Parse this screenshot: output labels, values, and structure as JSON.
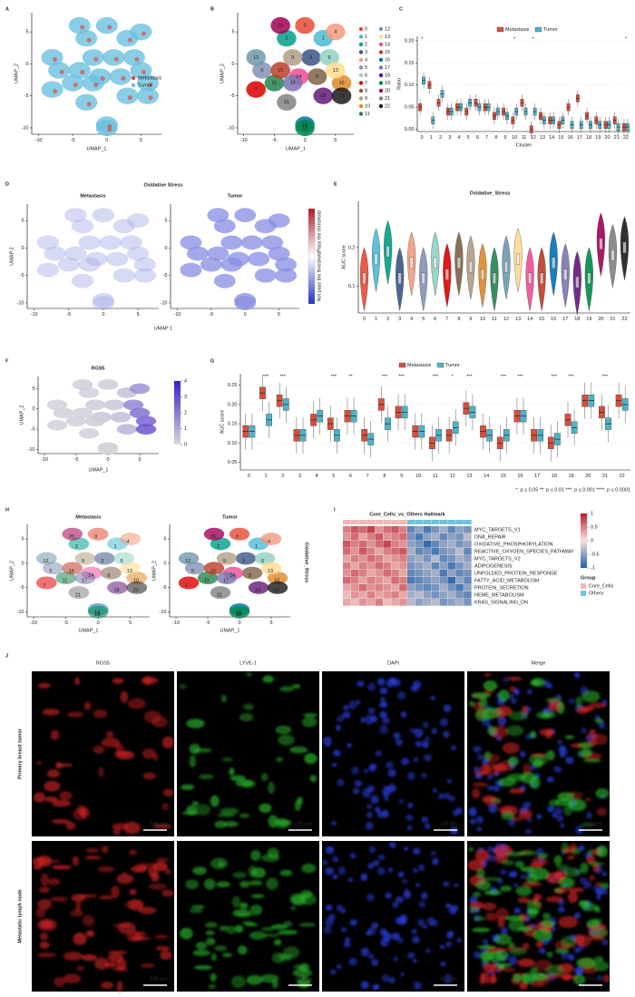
{
  "chart_data": [
    {
      "panel": "A",
      "type": "umap",
      "xlabel": "UMAP_1",
      "ylabel": "UMAP_2",
      "xlim": [
        -11,
        8
      ],
      "ylim": [
        -11,
        8
      ],
      "xticks": [
        -10,
        -5,
        0,
        5
      ],
      "yticks": [
        -10,
        -5,
        0,
        5
      ],
      "legend": [
        {
          "name": "Metastasis",
          "color": "#e0453a"
        },
        {
          "name": "Tumor",
          "color": "#6cc0e0"
        }
      ]
    },
    {
      "panel": "B",
      "type": "umap-clusters",
      "xlabel": "UMAP_1",
      "ylabel": "UMAP_2",
      "xlim": [
        -11,
        8
      ],
      "ylim": [
        -11,
        8
      ],
      "xticks": [
        -10,
        -5,
        0,
        5
      ],
      "yticks": [
        -10,
        -5,
        0,
        5
      ],
      "clusters": [
        {
          "name": "0",
          "x": 0,
          "y": 6,
          "color": "#e64b35"
        },
        {
          "name": "1",
          "x": 3,
          "y": 4,
          "color": "#4dbbd5"
        },
        {
          "name": "2",
          "x": -3,
          "y": 4,
          "color": "#00a087"
        },
        {
          "name": "3",
          "x": 1,
          "y": 1,
          "color": "#3c5488"
        },
        {
          "name": "4",
          "x": 5,
          "y": 5,
          "color": "#f39b7f"
        },
        {
          "name": "5",
          "x": -7,
          "y": -1,
          "color": "#8491b4"
        },
        {
          "name": "6",
          "x": 4,
          "y": 1,
          "color": "#91d1c2"
        },
        {
          "name": "7",
          "x": -8,
          "y": -4,
          "color": "#dc0000"
        },
        {
          "name": "8",
          "x": 2,
          "y": -2,
          "color": "#7e6148"
        },
        {
          "name": "9",
          "x": -2,
          "y": 1,
          "color": "#b09c85"
        },
        {
          "name": "10",
          "x": 6,
          "y": -3,
          "color": "#e18727"
        },
        {
          "name": "11",
          "x": -5,
          "y": -3,
          "color": "#20854e"
        },
        {
          "name": "12",
          "x": -8,
          "y": 1,
          "color": "#6f99ad"
        },
        {
          "name": "13",
          "x": 5,
          "y": -1,
          "color": "#ffdc91"
        },
        {
          "name": "14",
          "x": -1,
          "y": -2,
          "color": "#ee4c97"
        },
        {
          "name": "15",
          "x": -4,
          "y": -1,
          "color": "#bc3c29"
        },
        {
          "name": "16",
          "x": 0,
          "y": -9.5,
          "color": "#0072b5"
        },
        {
          "name": "17",
          "x": -2,
          "y": -3,
          "color": "#7876b1"
        },
        {
          "name": "18",
          "x": 3,
          "y": -5,
          "color": "#631879"
        },
        {
          "name": "19",
          "x": 0,
          "y": -10,
          "color": "#008b45"
        },
        {
          "name": "20",
          "x": -4,
          "y": 6,
          "color": "#a20056"
        },
        {
          "name": "21",
          "x": -3,
          "y": -6,
          "color": "#808180"
        },
        {
          "name": "22",
          "x": 6,
          "y": -5,
          "color": "#1b1919"
        }
      ]
    },
    {
      "panel": "C",
      "type": "box",
      "xlabel": "Cluster",
      "ylabel": "Ratio",
      "categories": [
        "0",
        "1",
        "2",
        "3",
        "4",
        "5",
        "6",
        "7",
        "8",
        "9",
        "10",
        "11",
        "12",
        "13",
        "14",
        "15",
        "16",
        "17",
        "18",
        "19",
        "20",
        "21",
        "22"
      ],
      "ylim": [
        -0.005,
        0.21
      ],
      "yticks": [
        {
          "value": 0,
          "label": "0.00"
        },
        {
          "value": 0.05,
          "label": "0.05"
        },
        {
          "value": 0.1,
          "label": "0.10"
        },
        {
          "value": 0.15,
          "label": "0.15"
        },
        {
          "value": 0.2,
          "label": "0.20"
        }
      ],
      "grid": true,
      "series": [
        {
          "name": "Metastasis",
          "color": "#d6503d",
          "values": [
            0.05,
            0.1,
            0.06,
            0.04,
            0.05,
            0.04,
            0.06,
            0.05,
            0.03,
            0.04,
            0.02,
            0.06,
            0.0,
            0.03,
            0.02,
            0.01,
            0.05,
            0.07,
            0.03,
            0.02,
            0.01,
            0.02,
            0.005
          ]
        },
        {
          "name": "Tumor",
          "color": "#4fb3c8",
          "values": [
            0.11,
            0.02,
            0.08,
            0.04,
            0.05,
            0.06,
            0.05,
            0.05,
            0.04,
            0.03,
            0.04,
            0.04,
            0.04,
            0.02,
            0.02,
            0.02,
            0.01,
            0.01,
            0.01,
            0.01,
            0.01,
            0.005,
            0.005
          ]
        }
      ],
      "significance": [
        "*",
        null,
        null,
        null,
        null,
        null,
        null,
        null,
        null,
        null,
        "*",
        null,
        "*",
        null,
        null,
        null,
        null,
        null,
        null,
        null,
        null,
        null,
        "*"
      ]
    },
    {
      "panel": "D",
      "type": "umap-pair",
      "title": "Oxidative Stress",
      "subtitles": [
        "Metastasis",
        "Tumor"
      ],
      "xlabel": "UMAP 1",
      "ylabel": "UMAP 2",
      "xlim": [
        -11,
        8
      ],
      "ylim": [
        -11,
        8
      ],
      "xticks": [
        -10,
        -5,
        0,
        5
      ],
      "yticks": [
        -10,
        -5,
        0,
        5
      ],
      "colorbar": {
        "labels": [
          "Pass the threshold",
          "Not pass the threshold"
        ],
        "colors": [
          "#b2182b",
          "#ffffff",
          "#2131c8"
        ]
      }
    },
    {
      "panel": "E",
      "type": "violin",
      "title": "Oxidative_Stress",
      "ylabel": "AUC score",
      "categories": [
        "0",
        "1",
        "2",
        "3",
        "4",
        "5",
        "6",
        "7",
        "8",
        "9",
        "10",
        "11",
        "12",
        "13",
        "14",
        "15",
        "16",
        "17",
        "18",
        "19",
        "20",
        "21",
        "22"
      ],
      "values": [
        0.12,
        0.17,
        0.19,
        0.12,
        0.16,
        0.12,
        0.16,
        0.13,
        0.16,
        0.15,
        0.13,
        0.12,
        0.15,
        0.17,
        0.12,
        0.12,
        0.16,
        0.13,
        0.11,
        0.12,
        0.21,
        0.18,
        0.2
      ],
      "ylim": [
        0.03,
        0.32
      ],
      "yticks": [
        0.1,
        0.2
      ]
    },
    {
      "panel": "F",
      "type": "feature",
      "title": "RGS5",
      "xlabel": "UMAP_1",
      "ylabel": "UMAP_2",
      "xlim": [
        -11,
        8
      ],
      "ylim": [
        -11,
        8
      ],
      "xticks": [
        -10,
        -5,
        0,
        5
      ],
      "yticks": [
        -10,
        -5,
        0,
        5
      ],
      "values": [
        0.3,
        0.5,
        0.2,
        0.4,
        1.5,
        0.2,
        1.8,
        0.2,
        0.6,
        0.3,
        2.5,
        0.2,
        0.2,
        2.2,
        0.4,
        0.2,
        0.3,
        0.3,
        0.8,
        0.1,
        0.3,
        0.2,
        2.8
      ],
      "colorbar": {
        "ticks": [
          0,
          1,
          2,
          3,
          4
        ],
        "colors": [
          "#d9d9d9",
          "#3f1ccf"
        ]
      }
    },
    {
      "panel": "G",
      "type": "box",
      "ylabel": "AUC score",
      "categories": [
        "0",
        "1",
        "2",
        "3",
        "4",
        "5",
        "6",
        "7",
        "8",
        "9",
        "10",
        "11",
        "12",
        "13",
        "14",
        "15",
        "16",
        "17",
        "18",
        "19",
        "20",
        "21",
        "22"
      ],
      "ylim": [
        0.03,
        0.28
      ],
      "yticks": [
        {
          "value": 0.05,
          "label": "0.05"
        },
        {
          "value": 0.1,
          "label": "0.10"
        },
        {
          "value": 0.15,
          "label": "0.15"
        },
        {
          "value": 0.2,
          "label": "0.20"
        },
        {
          "value": 0.25,
          "label": "0.25"
        }
      ],
      "grid": true,
      "series": [
        {
          "name": "Metastasis",
          "color": "#d6503d",
          "values": [
            0.13,
            0.23,
            0.21,
            0.12,
            0.16,
            0.15,
            0.17,
            0.12,
            0.2,
            0.18,
            0.13,
            0.1,
            0.12,
            0.19,
            0.13,
            0.1,
            0.17,
            0.12,
            0.1,
            0.16,
            0.21,
            0.18,
            0.21
          ]
        },
        {
          "name": "Tumor",
          "color": "#4fb3c8",
          "values": [
            0.13,
            0.16,
            0.2,
            0.12,
            0.17,
            0.12,
            0.17,
            0.11,
            0.15,
            0.18,
            0.13,
            0.12,
            0.14,
            0.18,
            0.12,
            0.12,
            0.17,
            0.12,
            0.11,
            0.14,
            0.21,
            0.15,
            0.2
          ]
        }
      ],
      "significance": [
        null,
        "***",
        "***",
        null,
        null,
        "***",
        "**",
        null,
        "***",
        "***",
        null,
        "***",
        "*",
        "***",
        null,
        "***",
        "***",
        null,
        "***",
        "***",
        null,
        "***",
        null
      ],
      "footnote": "*: p ≤ 0.05   **: p ≤ 0.01   ***: p ≤ 0.001   ****: p ≤ 0.0001"
    },
    {
      "panel": "H",
      "type": "umap-pair",
      "subtitles": [
        "Metastasis",
        "Tumor"
      ],
      "side_label": "Oxidative_Stress",
      "xlabel": "UMAP_1",
      "ylabel": "UMAP_2",
      "xlim": [
        -11,
        8
      ],
      "ylim": [
        -11,
        8
      ],
      "xticks": [
        -10,
        -5,
        0,
        5
      ],
      "yticks": [
        -10,
        -5,
        0,
        5
      ]
    },
    {
      "panel": "I",
      "type": "heatmap",
      "title": "Core_Cells_vs_Others Hallmark",
      "legend_title": "Group",
      "rows": [
        "MYC_TARGETS_V1",
        "DNA_REPAIR",
        "OXIDATIVE_PHOSPHORYLATION",
        "REACTIVE_OXYGEN_SPECIES_PATHWAY",
        "MYC_TARGETS_V2",
        "ADIPOGENESIS",
        "UNFOLDED_PROTEIN_RESPONSE",
        "FATTY_ACID_METABOLISM",
        "PROTEIN_SECRETION",
        "HEME_METABOLISM",
        "KRAS_SIGNALING_DN"
      ],
      "groups": [
        {
          "name": "Core_Cells",
          "color": "#f4b6b6"
        },
        {
          "name": "Others",
          "color": "#6ec3dc"
        }
      ],
      "column_groups": [
        "Core_Cells",
        "Core_Cells",
        "Core_Cells",
        "Core_Cells",
        "Core_Cells",
        "Core_Cells",
        "Core_Cells",
        "Core_Cells",
        "Others",
        "Others",
        "Others",
        "Others",
        "Others",
        "Others",
        "Others",
        "Others"
      ],
      "values": [
        [
          0.5,
          0.7,
          0.6,
          0.8,
          0.4,
          0.6,
          0.7,
          0.5,
          -0.7,
          -0.5,
          -0.8,
          -0.6,
          -0.4,
          -0.7,
          -0.5,
          -0.6
        ],
        [
          0.4,
          0.6,
          0.3,
          0.5,
          0.7,
          0.4,
          0.5,
          0.6,
          -0.6,
          -0.8,
          -0.5,
          -0.4,
          -0.7,
          -0.5,
          -0.6,
          -0.3
        ],
        [
          0.7,
          0.5,
          0.6,
          0.4,
          0.6,
          0.8,
          0.5,
          0.4,
          -0.5,
          -0.6,
          -0.9,
          -0.7,
          -0.5,
          -0.4,
          -0.6,
          -0.5
        ],
        [
          0.6,
          0.4,
          0.7,
          0.5,
          0.3,
          0.5,
          0.6,
          0.7,
          -0.4,
          -0.7,
          -0.6,
          -0.8,
          -0.6,
          -0.5,
          -0.3,
          -0.7
        ],
        [
          0.3,
          0.5,
          0.4,
          0.6,
          0.5,
          0.3,
          0.4,
          0.5,
          -0.5,
          -0.4,
          -0.6,
          -0.3,
          -0.7,
          -0.6,
          -0.4,
          -0.5
        ],
        [
          0.5,
          0.3,
          0.5,
          0.4,
          0.6,
          0.5,
          0.3,
          0.4,
          -0.6,
          -0.5,
          -0.4,
          -0.7,
          -0.5,
          -0.8,
          -0.6,
          -0.4
        ],
        [
          0.4,
          0.6,
          0.5,
          0.3,
          0.4,
          0.6,
          0.5,
          0.3,
          -0.7,
          -0.6,
          -0.5,
          -0.4,
          -0.8,
          -0.5,
          -0.7,
          -0.6
        ],
        [
          0.6,
          0.5,
          0.3,
          0.5,
          0.4,
          0.3,
          0.6,
          0.5,
          -0.8,
          -0.7,
          -0.6,
          -0.5,
          -0.6,
          -0.9,
          -0.5,
          -0.7
        ],
        [
          0.3,
          0.4,
          0.6,
          0.4,
          0.5,
          0.4,
          0.3,
          0.6,
          -0.5,
          -0.6,
          -0.7,
          -0.6,
          -0.4,
          -0.6,
          -0.8,
          -0.5
        ],
        [
          0.2,
          0.4,
          0.3,
          0.5,
          0.3,
          0.4,
          0.5,
          0.3,
          -0.4,
          -0.3,
          -0.5,
          -0.6,
          -0.5,
          -0.4,
          -0.6,
          -0.7
        ],
        [
          0.3,
          0.2,
          0.4,
          0.3,
          0.5,
          0.2,
          0.3,
          0.4,
          -0.3,
          -0.5,
          -0.4,
          -0.3,
          -0.6,
          -0.5,
          -0.4,
          -0.6
        ]
      ],
      "colorbar": {
        "ticks": [
          1,
          0.5,
          0,
          -0.5,
          -1
        ],
        "colors": [
          "#b71c2c",
          "#fbe3dc",
          "#1f5fa8"
        ]
      }
    },
    {
      "panel": "J",
      "type": "image-grid",
      "columns": [
        "RGS5",
        "LYVE-1",
        "DAPI",
        "Merge"
      ],
      "rows": [
        "Primary breast tumor",
        "Metastatic lymph node"
      ],
      "scale_bar": "100 μm"
    }
  ]
}
